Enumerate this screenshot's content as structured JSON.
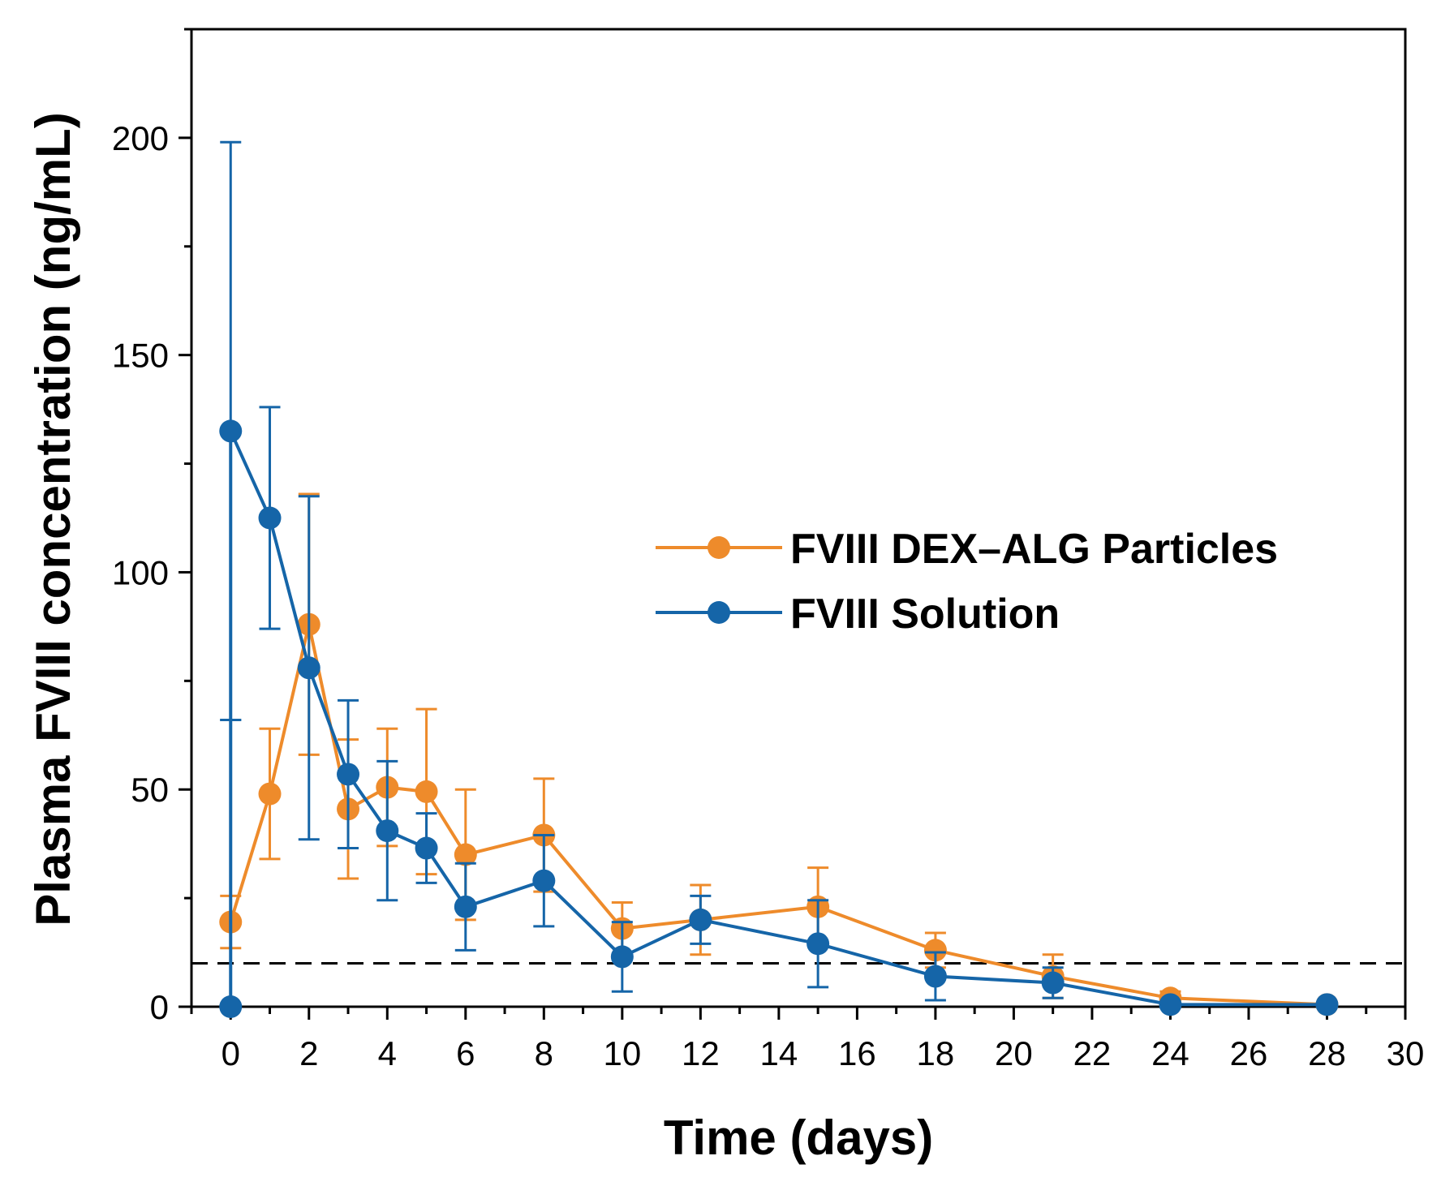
{
  "chart_data": {
    "type": "line",
    "title": "",
    "xlabel": "Time (days)",
    "ylabel": "Plasma FVIII concentration (ng/mL)",
    "xlim": [
      -1,
      30
    ],
    "ylim": [
      0,
      225
    ],
    "x_ticks": [
      0,
      2,
      4,
      6,
      8,
      10,
      12,
      14,
      16,
      18,
      20,
      22,
      24,
      26,
      28,
      30
    ],
    "y_ticks": [
      0,
      50,
      100,
      150,
      200
    ],
    "reference_line": {
      "y": 10,
      "style": "dashed"
    },
    "legend_position": "center-right",
    "series": [
      {
        "name": "FVIII DEX–ALG Particles",
        "color": "#ee8b2b",
        "x": [
          0,
          1,
          2,
          3,
          4,
          5,
          6,
          8,
          10,
          12,
          15,
          18,
          21,
          24,
          28
        ],
        "y": [
          19.5,
          49,
          88,
          45.5,
          50.5,
          49.5,
          35,
          39.5,
          18,
          20,
          23,
          13,
          7,
          2,
          0.5
        ],
        "error": [
          6,
          15,
          30,
          16,
          13.5,
          19,
          15,
          13,
          6,
          8,
          9,
          4,
          5,
          1.5,
          0.5
        ]
      },
      {
        "name": "FVIII Solution",
        "color": "#1565a8",
        "x": [
          0,
          0,
          1,
          2,
          3,
          4,
          5,
          6,
          8,
          10,
          12,
          15,
          18,
          21,
          24,
          28
        ],
        "y": [
          0,
          132.5,
          112.5,
          78,
          53.5,
          40.5,
          36.5,
          23,
          29,
          11.5,
          20,
          14.5,
          7,
          5.5,
          0.5,
          0.5
        ],
        "error": [
          66,
          66.5,
          25.5,
          39.5,
          17,
          16,
          8,
          10,
          10.5,
          8,
          5.5,
          10,
          5.5,
          3.5,
          0.5,
          0.5
        ]
      }
    ]
  }
}
